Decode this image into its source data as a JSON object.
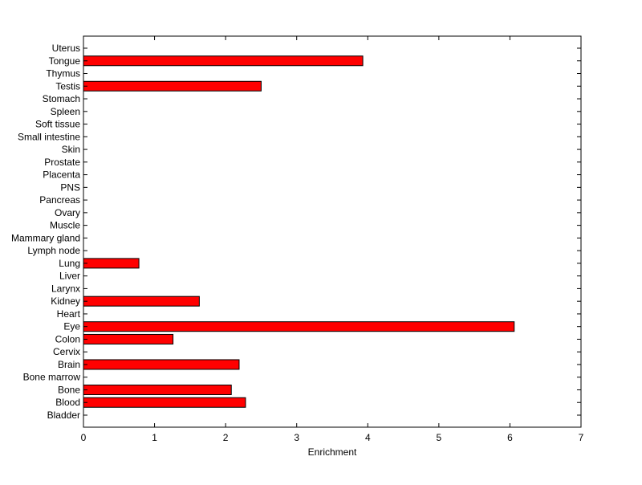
{
  "chart_data": {
    "type": "bar",
    "orientation": "horizontal",
    "title": "",
    "xlabel": "Enrichment",
    "ylabel": "",
    "xlim": [
      0,
      7
    ],
    "xticks": [
      "0",
      "1",
      "2",
      "3",
      "4",
      "5",
      "6",
      "7"
    ],
    "grid": false,
    "legend": "none",
    "bar_color": "#ff0000",
    "bar_edge_color": "#000000",
    "categories": [
      "Bladder",
      "Blood",
      "Bone",
      "Bone marrow",
      "Brain",
      "Cervix",
      "Colon",
      "Eye",
      "Heart",
      "Kidney",
      "Larynx",
      "Liver",
      "Lung",
      "Lymph node",
      "Mammary gland",
      "Muscle",
      "Ovary",
      "Pancreas",
      "PNS",
      "Placenta",
      "Prostate",
      "Skin",
      "Small intestine",
      "Soft tissue",
      "Spleen",
      "Stomach",
      "Testis",
      "Thymus",
      "Tongue",
      "Uterus"
    ],
    "values": [
      0,
      2.28,
      2.08,
      0,
      2.19,
      0,
      1.26,
      6.06,
      0,
      1.63,
      0,
      0,
      0.78,
      0,
      0,
      0,
      0,
      0,
      0,
      0,
      0,
      0,
      0,
      0,
      0,
      0,
      2.5,
      0,
      3.93,
      0
    ]
  }
}
